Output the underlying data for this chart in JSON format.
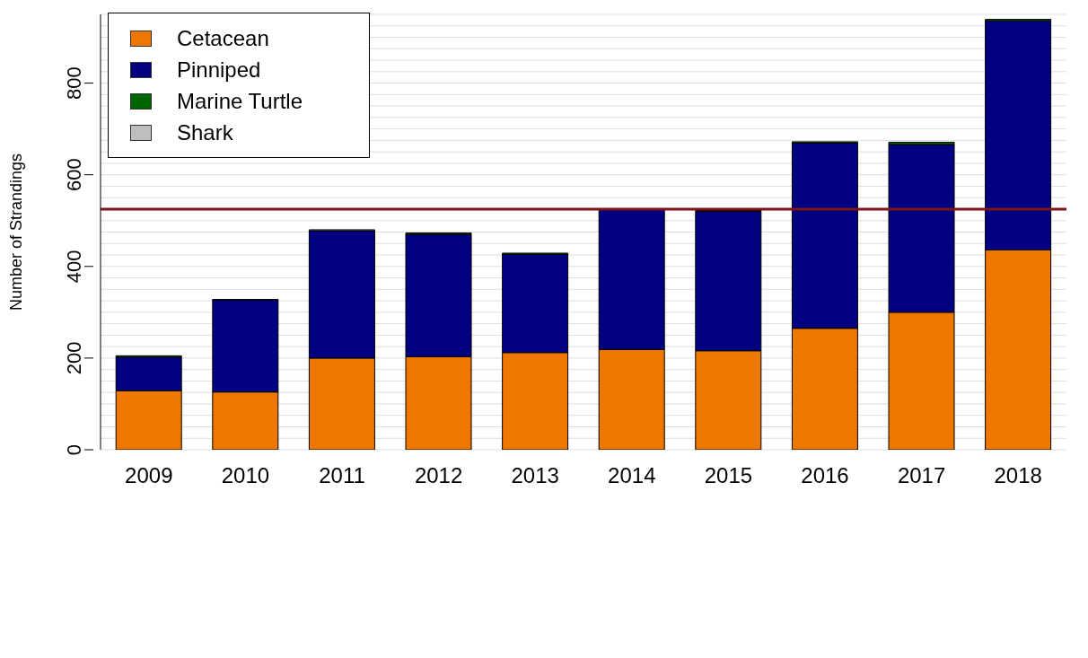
{
  "chart_data": {
    "type": "bar",
    "stacked": true,
    "ylabel": "Number of Strandings",
    "categories": [
      "2009",
      "2010",
      "2011",
      "2012",
      "2013",
      "2014",
      "2015",
      "2016",
      "2017",
      "2018"
    ],
    "series": [
      {
        "name": "Cetacean",
        "color": "#ee7700",
        "values": [
          129,
          126,
          200,
          203,
          212,
          219,
          216,
          265,
          300,
          436
        ]
      },
      {
        "name": "Pinniped",
        "color": "#000080",
        "values": [
          73,
          201,
          278,
          267,
          214,
          307,
          304,
          404,
          366,
          500
        ]
      },
      {
        "name": "Marine Turtle",
        "color": "#006400",
        "values": [
          3,
          1,
          null,
          3,
          3,
          null,
          2,
          3,
          5,
          3
        ]
      },
      {
        "name": "Shark",
        "color": "#bebebe",
        "values": [
          0,
          0,
          2,
          0,
          0,
          0,
          0,
          0,
          0,
          0
        ]
      }
    ],
    "ylim": [
      0,
      950
    ],
    "yticks": [
      0,
      {
        "value": 25,
        "label": null
      },
      {
        "value": 50,
        "label": null
      },
      {
        "value": 75,
        "label": null
      },
      {
        "value": 100,
        "label": null
      },
      {
        "value": 125,
        "label": null
      },
      {
        "value": 150,
        "label": null
      },
      {
        "value": 175,
        "label": null
      },
      200,
      {
        "value": 225,
        "label": null
      },
      {
        "value": 250,
        "label": null
      },
      {
        "value": 275,
        "label": null
      },
      {
        "value": 300,
        "label": null
      },
      {
        "value": 325,
        "label": null
      },
      {
        "value": 350,
        "label": null
      },
      {
        "value": 375,
        "label": null
      },
      400,
      {
        "value": 425,
        "label": null
      },
      {
        "value": 450,
        "label": null
      },
      {
        "value": 475,
        "label": null
      },
      {
        "value": 500,
        "label": null
      },
      {
        "value": 525,
        "label": null
      },
      {
        "value": 550,
        "label": null
      },
      {
        "value": 575,
        "label": null
      },
      600,
      {
        "value": 625,
        "label": null
      },
      {
        "value": 650,
        "label": null
      },
      {
        "value": 675,
        "label": null
      },
      {
        "value": 700,
        "label": null
      },
      {
        "value": 725,
        "label": null
      },
      {
        "value": 750,
        "label": null
      },
      {
        "value": 775,
        "label": null
      },
      800,
      {
        "value": 825,
        "label": null
      },
      {
        "value": 850,
        "label": null
      },
      {
        "value": 875,
        "label": null
      },
      {
        "value": 900,
        "label": null
      },
      {
        "value": 925,
        "label": null
      }
    ],
    "grid": "y",
    "legend": "top left",
    "ref_lines": [
      {
        "axis": "y",
        "value": 525,
        "color": "#7f1416"
      }
    ]
  }
}
